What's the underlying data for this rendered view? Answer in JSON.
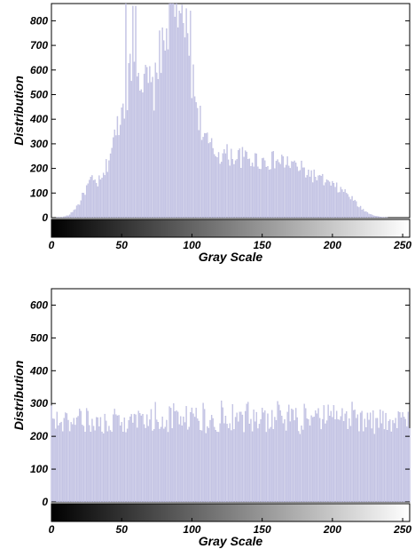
{
  "chart_data": [
    {
      "type": "bar",
      "xlabel": "Gray Scale",
      "ylabel": "Distribution",
      "xlim": [
        0,
        255
      ],
      "ylim": [
        0,
        870
      ],
      "xticks": [
        0,
        50,
        100,
        150,
        200,
        250
      ],
      "yticks": [
        0,
        100,
        200,
        300,
        400,
        500,
        600,
        700,
        800
      ],
      "grid": false,
      "bar_color": "#c7c7e6",
      "colorbar": "grayscale gradient 0 to 255",
      "profile": [
        [
          0,
          0
        ],
        [
          8,
          2
        ],
        [
          12,
          8
        ],
        [
          16,
          30
        ],
        [
          20,
          60
        ],
        [
          24,
          110
        ],
        [
          28,
          150
        ],
        [
          32,
          140
        ],
        [
          36,
          150
        ],
        [
          40,
          220
        ],
        [
          42,
          270
        ],
        [
          45,
          320
        ],
        [
          48,
          400
        ],
        [
          52,
          470
        ],
        [
          55,
          560
        ],
        [
          58,
          600
        ],
        [
          60,
          700
        ],
        [
          62,
          640
        ],
        [
          64,
          560
        ],
        [
          66,
          520
        ],
        [
          68,
          560
        ],
        [
          72,
          510
        ],
        [
          76,
          560
        ],
        [
          80,
          690
        ],
        [
          83,
          820
        ],
        [
          85,
          760
        ],
        [
          88,
          860
        ],
        [
          91,
          870
        ],
        [
          94,
          740
        ],
        [
          97,
          650
        ],
        [
          100,
          580
        ],
        [
          102,
          500
        ],
        [
          104,
          460
        ],
        [
          106,
          400
        ],
        [
          108,
          340
        ],
        [
          110,
          310
        ],
        [
          115,
          270
        ],
        [
          120,
          260
        ],
        [
          130,
          250
        ],
        [
          140,
          240
        ],
        [
          150,
          230
        ],
        [
          160,
          230
        ],
        [
          170,
          220
        ],
        [
          180,
          190
        ],
        [
          190,
          160
        ],
        [
          200,
          130
        ],
        [
          210,
          100
        ],
        [
          215,
          70
        ],
        [
          220,
          40
        ],
        [
          225,
          20
        ],
        [
          230,
          8
        ],
        [
          235,
          2
        ],
        [
          240,
          0
        ],
        [
          255,
          0
        ]
      ],
      "peaks": [
        [
          53,
          870
        ],
        [
          58,
          860
        ],
        [
          60,
          860
        ],
        [
          85,
          870
        ],
        [
          86,
          870
        ],
        [
          92,
          830
        ],
        [
          94,
          790
        ],
        [
          96,
          850
        ],
        [
          99,
          840
        ],
        [
          77,
          760
        ],
        [
          80,
          720
        ]
      ]
    },
    {
      "type": "bar",
      "xlabel": "Gray Scale",
      "ylabel": "Distribution",
      "xlim": [
        0,
        255
      ],
      "ylim": [
        0,
        650
      ],
      "xticks": [
        0,
        50,
        100,
        150,
        200,
        250
      ],
      "yticks": [
        0,
        100,
        200,
        300,
        400,
        500,
        600
      ],
      "grid": false,
      "bar_color": "#c7c7e6",
      "colorbar": "grayscale gradient 0 to 255",
      "mean_value": 250,
      "range": [
        205,
        310
      ]
    }
  ]
}
